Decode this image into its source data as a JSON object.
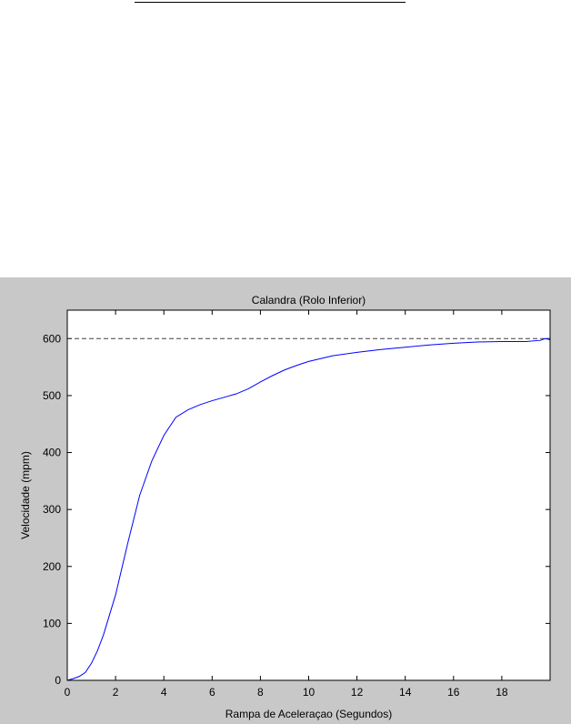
{
  "colors": {
    "figure_background": "#c8c8c8",
    "axes_background": "#ffffff",
    "series_line": "#0000ff",
    "reference_line": "#404040"
  },
  "chart_data": {
    "type": "line",
    "title": "Calandra (Rolo Inferior)",
    "xlabel": "Rampa de Aceleraçao (Segundos)",
    "ylabel": "Velocidade (mpm)",
    "xlim": [
      0,
      20
    ],
    "ylim": [
      0,
      650
    ],
    "xticks": [
      0,
      2,
      4,
      6,
      8,
      10,
      12,
      14,
      16,
      18
    ],
    "yticks": [
      0,
      100,
      200,
      300,
      400,
      500,
      600
    ],
    "grid": false,
    "legend": "none",
    "reference_line": {
      "y": 600,
      "style": "dashed"
    },
    "series": [
      {
        "x": [
          0,
          0.25,
          0.5,
          0.75,
          1.0,
          1.25,
          1.5,
          2.0,
          2.5,
          3.0,
          3.5,
          4.0,
          4.5,
          5.0,
          5.5,
          6.0,
          6.5,
          7.0,
          7.5,
          8.0,
          8.5,
          9.0,
          9.5,
          10.0,
          10.5,
          11.0,
          12.0,
          13.0,
          14.0,
          15.0,
          16.0,
          17.0,
          18.0,
          19.0,
          19.6,
          19.8,
          20.0
        ],
        "y": [
          0,
          3,
          7,
          14,
          30,
          52,
          80,
          150,
          240,
          325,
          385,
          430,
          462,
          475,
          484,
          491,
          497,
          503,
          512,
          524,
          535,
          545,
          553,
          560,
          565,
          570,
          576,
          581,
          585,
          589,
          592,
          594,
          595,
          595,
          597,
          600,
          598
        ]
      }
    ]
  }
}
